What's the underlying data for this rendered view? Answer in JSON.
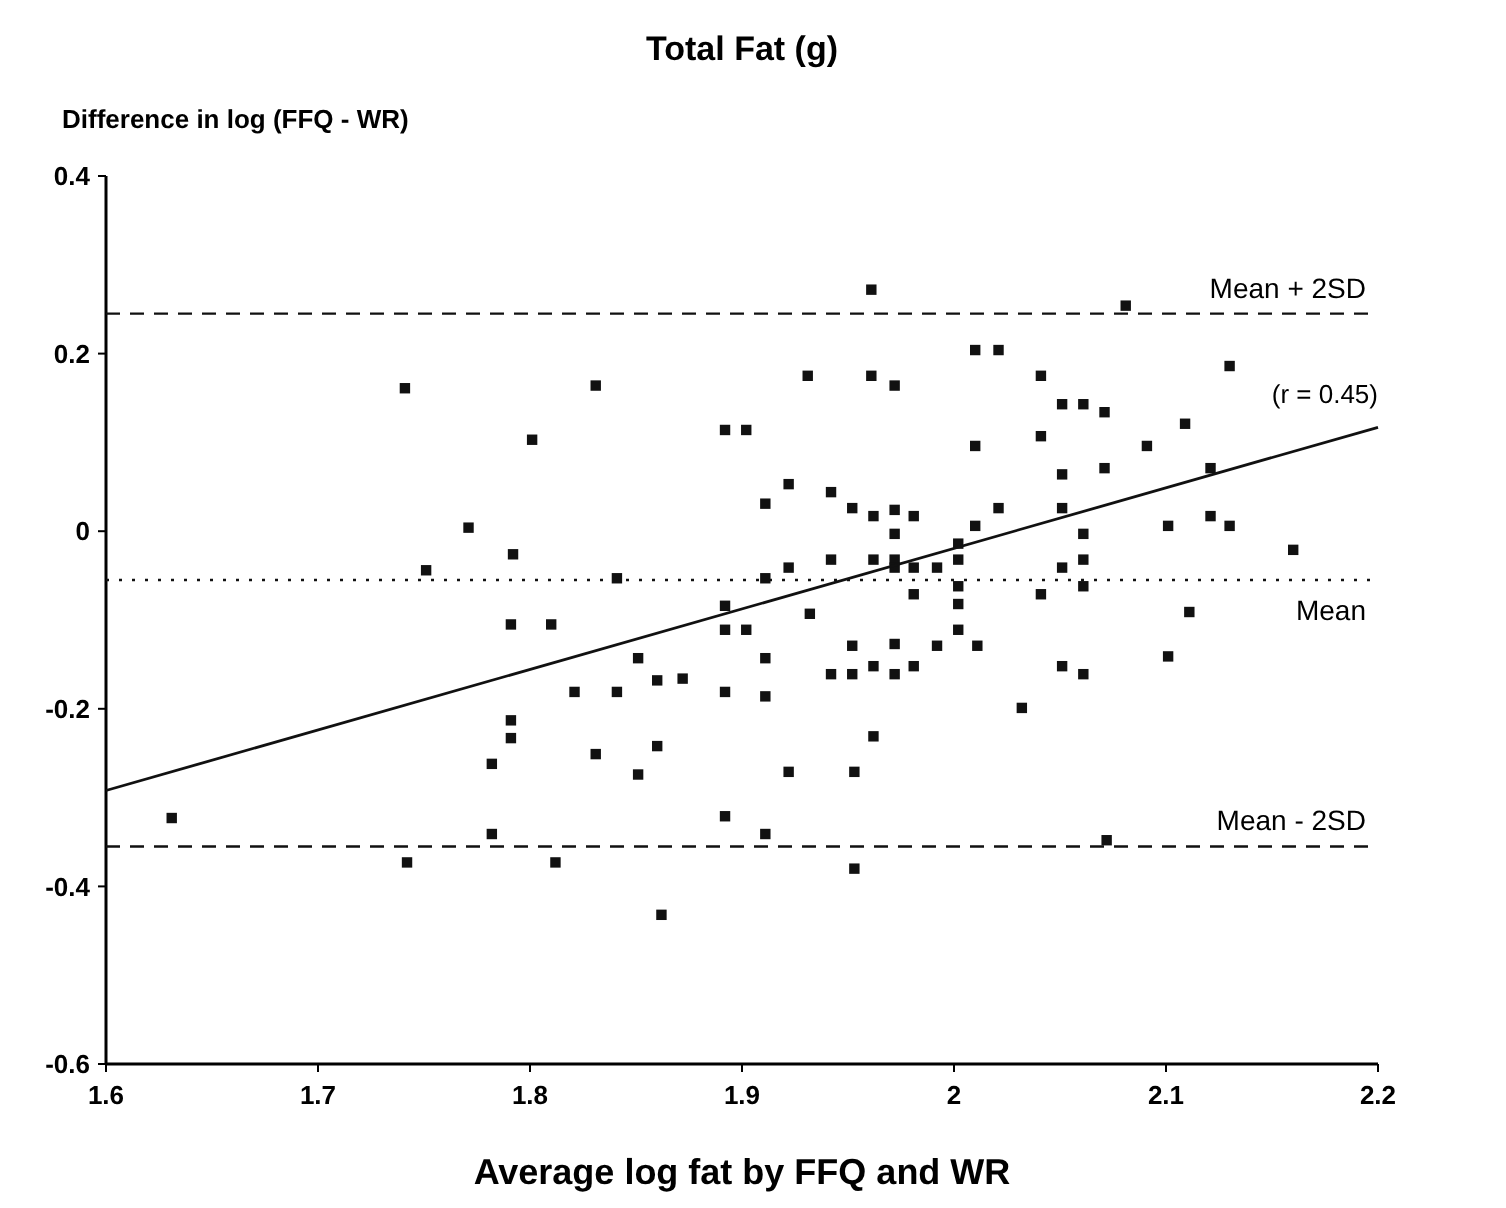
{
  "chart_data": {
    "type": "scatter",
    "title": "Total Fat (g)",
    "xlabel": "Average log fat by FFQ and WR",
    "ylabel": "Difference in log (FFQ - WR)",
    "xlim": [
      1.6,
      2.2
    ],
    "xticks": [
      1.6,
      1.7,
      1.8,
      1.9,
      2,
      2.1,
      2.2
    ],
    "ylim": [
      -0.6,
      0.4
    ],
    "yticks": [
      -0.6,
      -0.4,
      -0.2,
      0,
      0.2,
      0.4
    ],
    "grid": false,
    "series": [
      {
        "color": "#111111",
        "marker": "square",
        "x": [
          1.631,
          1.741,
          1.742,
          1.751,
          1.771,
          1.782,
          1.782,
          1.791,
          1.791,
          1.791,
          1.792,
          1.801,
          1.81,
          1.812,
          1.821,
          1.831,
          1.831,
          1.841,
          1.841,
          1.851,
          1.851,
          1.86,
          1.86,
          1.862,
          1.872,
          1.892,
          1.902,
          1.892,
          1.892,
          1.902,
          1.892,
          1.892,
          1.911,
          1.911,
          1.911,
          1.911,
          1.911,
          1.922,
          1.922,
          1.922,
          1.931,
          1.932,
          1.942,
          1.942,
          1.942,
          1.952,
          1.952,
          1.952,
          1.953,
          1.953,
          1.961,
          1.961,
          1.962,
          1.962,
          1.962,
          1.962,
          1.972,
          1.972,
          1.972,
          1.972,
          1.972,
          1.972,
          1.972,
          1.981,
          1.981,
          1.981,
          1.981,
          1.992,
          1.992,
          2.002,
          2.002,
          2.002,
          2.002,
          2.002,
          2.01,
          2.01,
          2.01,
          2.011,
          2.021,
          2.021,
          2.032,
          2.041,
          2.041,
          2.041,
          2.051,
          2.051,
          2.051,
          2.051,
          2.051,
          2.061,
          2.061,
          2.061,
          2.061,
          2.061,
          2.071,
          2.071,
          2.072,
          2.081,
          2.091,
          2.101,
          2.101,
          2.109,
          2.111,
          2.121,
          2.121,
          2.13,
          2.13,
          2.16
        ],
        "values": [
          -0.323,
          0.161,
          -0.373,
          -0.044,
          0.004,
          -0.262,
          -0.341,
          -0.105,
          -0.213,
          -0.233,
          -0.026,
          0.103,
          -0.105,
          -0.373,
          -0.181,
          0.164,
          -0.251,
          -0.053,
          -0.181,
          -0.143,
          -0.274,
          -0.168,
          -0.242,
          -0.432,
          -0.166,
          0.114,
          0.114,
          -0.084,
          -0.111,
          -0.111,
          -0.181,
          -0.321,
          0.031,
          -0.053,
          -0.143,
          -0.186,
          -0.341,
          0.053,
          -0.041,
          -0.271,
          0.175,
          -0.093,
          0.044,
          -0.032,
          -0.161,
          0.026,
          -0.129,
          -0.161,
          -0.271,
          -0.38,
          0.272,
          0.175,
          0.017,
          -0.032,
          -0.152,
          -0.231,
          0.164,
          0.024,
          -0.003,
          -0.032,
          -0.127,
          -0.161,
          -0.041,
          0.017,
          -0.041,
          -0.071,
          -0.152,
          -0.041,
          -0.129,
          -0.014,
          -0.032,
          -0.062,
          -0.082,
          -0.111,
          0.204,
          0.096,
          0.006,
          -0.129,
          0.204,
          0.026,
          -0.199,
          0.175,
          0.107,
          -0.071,
          0.143,
          0.064,
          0.026,
          -0.041,
          -0.152,
          0.143,
          -0.003,
          -0.032,
          -0.062,
          -0.161,
          0.134,
          0.071,
          -0.348,
          0.254,
          0.096,
          0.006,
          -0.141,
          0.121,
          -0.091,
          0.071,
          0.017,
          0.186,
          0.006,
          -0.021
        ]
      },
      {
        "type": "line",
        "color": "#111111",
        "line_style": "solid",
        "x": [
          1.6,
          2.2
        ],
        "values": [
          -0.292,
          0.117
        ]
      }
    ],
    "ref_lines": [
      {
        "axis": "y",
        "value": 0.245,
        "label": "Mean + 2SD",
        "line_style": "dashed",
        "color": "#111111"
      },
      {
        "axis": "y",
        "value": -0.055,
        "label": "Mean",
        "line_style": "dotted",
        "color": "#111111"
      },
      {
        "axis": "y",
        "value": -0.355,
        "label": "Mean - 2SD",
        "line_style": "dashed",
        "color": "#111111"
      }
    ],
    "annotations": [
      {
        "text": "(r = 0.45)",
        "x": 2.2,
        "y": 0.117
      }
    ]
  }
}
